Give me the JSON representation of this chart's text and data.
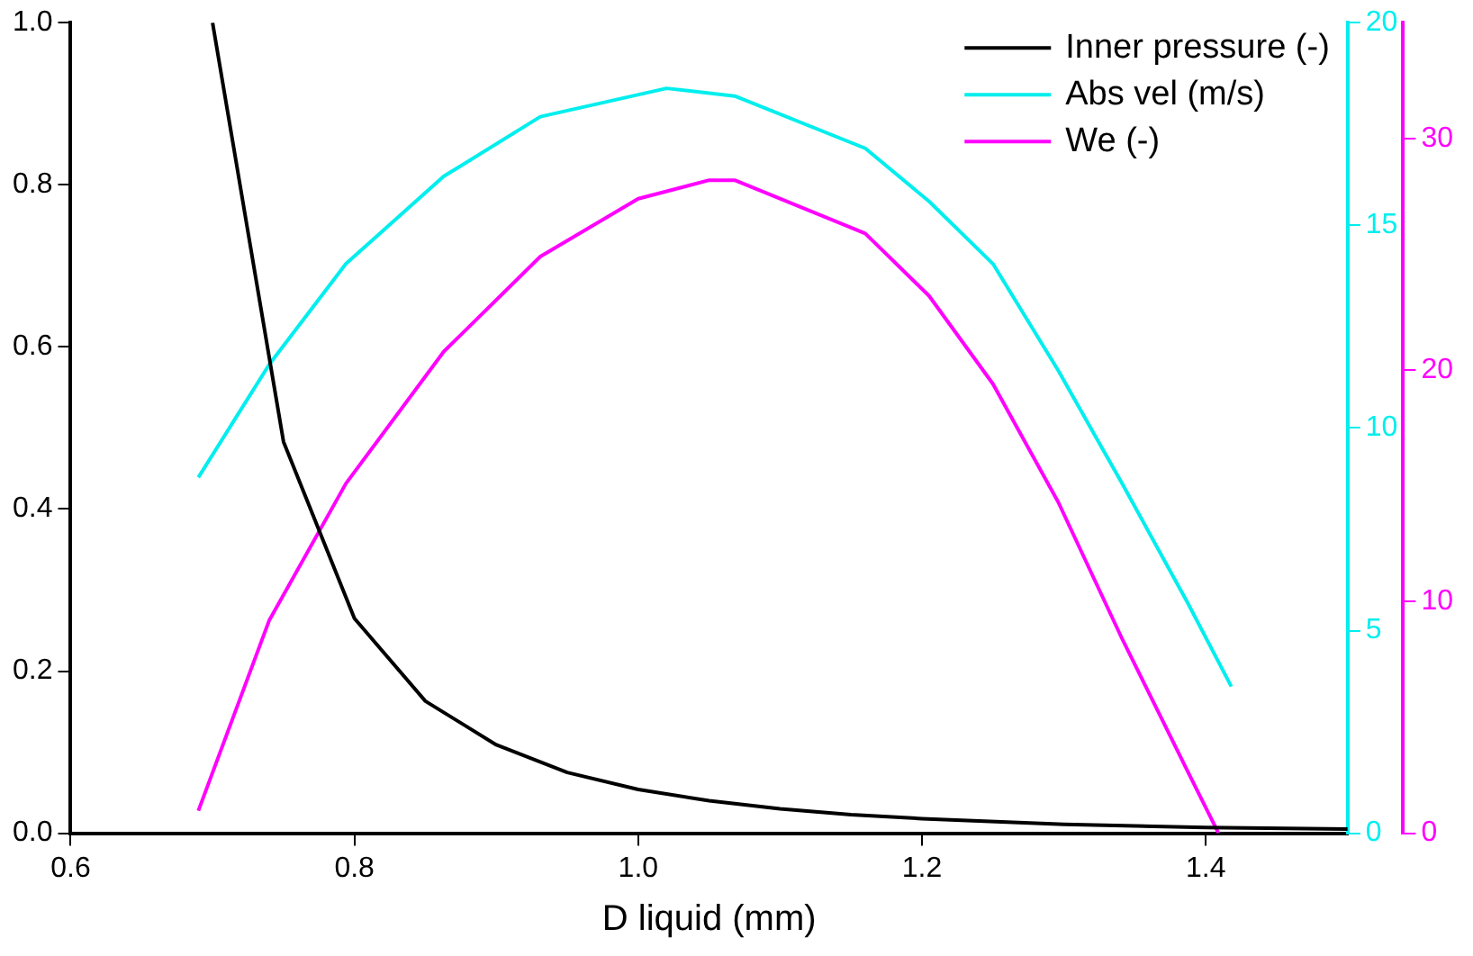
{
  "chart_data": {
    "type": "line",
    "xlabel": "D liquid (mm)",
    "xlim": [
      0.6,
      1.5
    ],
    "xticks": [
      0.6,
      0.8,
      {
        "value": 1.0,
        "label": "1.0"
      },
      1.2,
      1.4
    ],
    "ylim": [
      0,
      1
    ],
    "yticks": [
      {
        "value": 0,
        "label": "0.0"
      },
      0.2,
      0.4,
      0.6,
      0.8,
      {
        "value": 1,
        "label": "1.0"
      }
    ],
    "y2lim": [
      0,
      20
    ],
    "y2ticks": [
      0,
      5,
      10,
      15,
      20
    ],
    "y3lim": [
      0,
      35
    ],
    "y3ticks": [
      0,
      10,
      20,
      30
    ],
    "grid": false,
    "legend": "top right",
    "marker": "none",
    "line_style": "solid",
    "series": [
      {
        "name": "Inner pressure (-)",
        "color": "#000000",
        "axis": "y",
        "x": [
          0.7,
          0.75,
          0.8,
          0.85,
          0.9,
          0.95,
          1.0,
          1.05,
          1.1,
          1.15,
          1.2,
          1.3,
          1.4,
          1.5
        ],
        "values": [
          1.0,
          0.483,
          0.265,
          0.163,
          0.109,
          0.075,
          0.054,
          0.04,
          0.03,
          0.023,
          0.018,
          0.011,
          0.007,
          0.005
        ]
      },
      {
        "name": "Abs vel (m/s)",
        "color": "#00eeee",
        "axis": "y2",
        "x": [
          0.69,
          0.74,
          0.794,
          0.863,
          0.931,
          1.02,
          1.068,
          1.16,
          1.205,
          1.25,
          1.296,
          1.341,
          1.387,
          1.418
        ],
        "values": [
          8.78,
          11.57,
          14.05,
          16.21,
          17.68,
          18.38,
          18.19,
          16.9,
          15.59,
          14.05,
          11.42,
          8.63,
          5.7,
          3.62
        ]
      },
      {
        "name": "We (-)",
        "color": "#ff00ff",
        "axis": "y3",
        "x": [
          0.69,
          0.74,
          0.794,
          0.863,
          0.931,
          1.0,
          1.05,
          1.068,
          1.16,
          1.205,
          1.25,
          1.296,
          1.341,
          1.387,
          1.409
        ],
        "values": [
          0.97,
          9.2,
          15.1,
          20.8,
          24.9,
          27.4,
          28.2,
          28.2,
          25.9,
          23.2,
          19.4,
          14.3,
          8.4,
          2.7,
          0
        ]
      }
    ]
  }
}
